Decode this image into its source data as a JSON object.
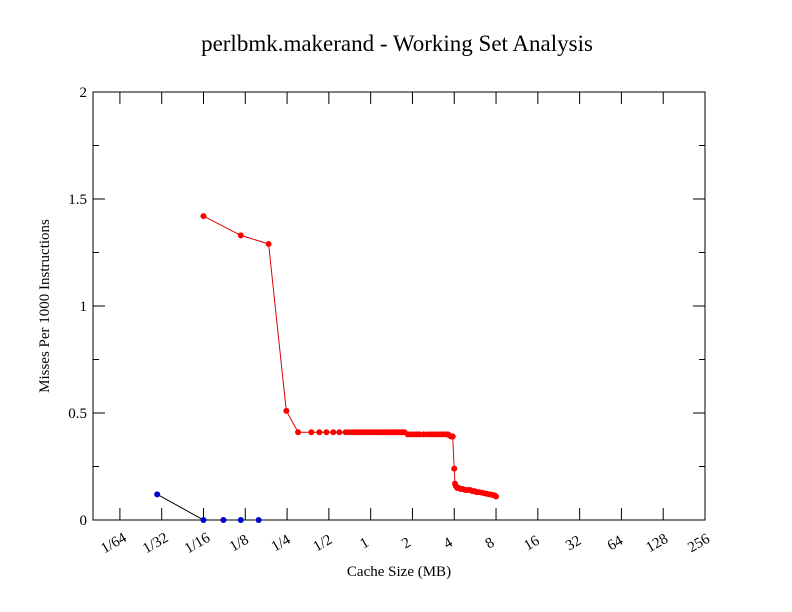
{
  "chart_data": {
    "type": "line",
    "title": "perlbmk.makerand - Working Set Analysis",
    "xlabel": "Cache Size (MB)",
    "ylabel": "Misses Per 1000 Instructions",
    "xscale": "log2",
    "xlim": [
      0.01,
      256
    ],
    "ylim": [
      0,
      2
    ],
    "x_ticks": [
      0.015625,
      0.03125,
      0.0625,
      0.125,
      0.25,
      0.5,
      1,
      2,
      4,
      8,
      16,
      32,
      64,
      128,
      256
    ],
    "x_tick_labels": [
      "1/64",
      "1/32",
      "1/16",
      "1/8",
      "1/4",
      "1/2",
      "1",
      "2",
      "4",
      "8",
      "16",
      "32",
      "64",
      "128",
      "256"
    ],
    "y_ticks": [
      0,
      0.5,
      1,
      1.5,
      2
    ],
    "y_tick_labels": [
      "0",
      "0.5",
      "1",
      "1.5",
      "2"
    ],
    "grid": false,
    "series": [
      {
        "name": "blue",
        "color": "#0000cc",
        "line_color": "#000000",
        "x": [
          0.029,
          0.0625,
          0.087,
          0.116,
          0.156
        ],
        "y": [
          0.12,
          0.0,
          0.0,
          0.0,
          0.0
        ]
      },
      {
        "name": "red",
        "color": "#ff0000",
        "line_color": "#dd0000",
        "x": [
          0.0625,
          0.116,
          0.184,
          0.247,
          0.3,
          0.374,
          0.427,
          0.48,
          0.538,
          0.595,
          0.66,
          0.7,
          0.74,
          0.78,
          0.82,
          0.86,
          0.9,
          0.95,
          1.0,
          1.05,
          1.1,
          1.15,
          1.2,
          1.25,
          1.3,
          1.35,
          1.4,
          1.45,
          1.5,
          1.55,
          1.6,
          1.65,
          1.7,
          1.75,
          1.85,
          1.95,
          2.05,
          2.15,
          2.25,
          2.4,
          2.55,
          2.7,
          2.85,
          3.0,
          3.15,
          3.3,
          3.45,
          3.6,
          3.7,
          3.8,
          3.9,
          4.0,
          4.05,
          4.1,
          4.2,
          4.3,
          4.45,
          4.6,
          4.8,
          5.0,
          5.2,
          5.4,
          5.6,
          5.8,
          6.0,
          6.3,
          6.6,
          6.9,
          7.2,
          7.5,
          7.8,
          8.0
        ],
        "y": [
          1.42,
          1.33,
          1.29,
          0.51,
          0.41,
          0.41,
          0.41,
          0.41,
          0.41,
          0.41,
          0.41,
          0.41,
          0.41,
          0.41,
          0.41,
          0.41,
          0.41,
          0.41,
          0.41,
          0.41,
          0.41,
          0.41,
          0.41,
          0.41,
          0.41,
          0.41,
          0.41,
          0.41,
          0.41,
          0.41,
          0.41,
          0.41,
          0.41,
          0.41,
          0.4,
          0.4,
          0.4,
          0.4,
          0.4,
          0.4,
          0.4,
          0.4,
          0.4,
          0.4,
          0.4,
          0.4,
          0.4,
          0.4,
          0.395,
          0.39,
          0.39,
          0.24,
          0.17,
          0.16,
          0.15,
          0.15,
          0.145,
          0.145,
          0.14,
          0.14,
          0.14,
          0.135,
          0.135,
          0.13,
          0.13,
          0.128,
          0.125,
          0.122,
          0.12,
          0.118,
          0.115,
          0.11
        ]
      }
    ]
  }
}
